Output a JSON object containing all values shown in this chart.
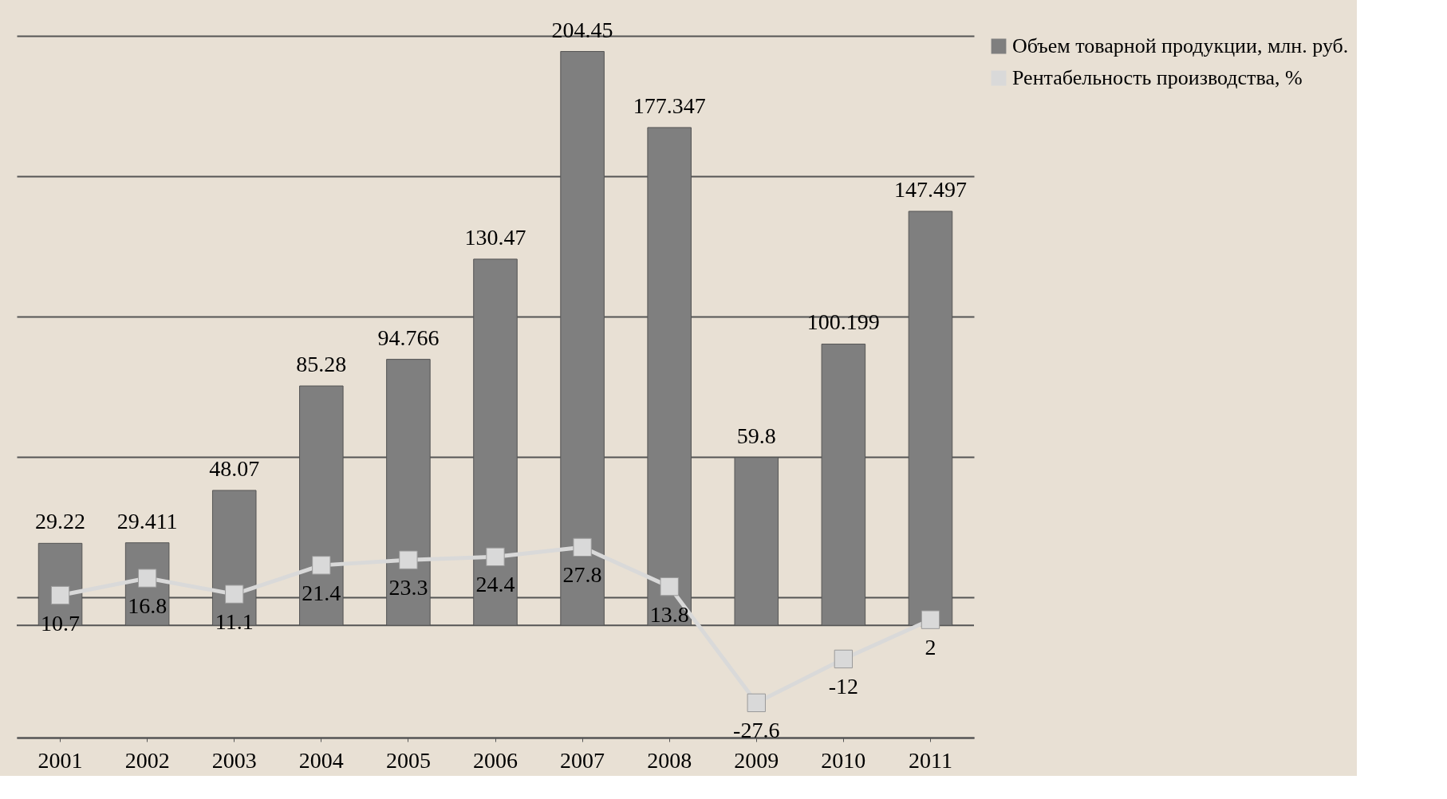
{
  "chart_data": {
    "type": "bar",
    "categories": [
      "2001",
      "2002",
      "2003",
      "2004",
      "2005",
      "2006",
      "2007",
      "2008",
      "2009",
      "2010",
      "2011"
    ],
    "series": [
      {
        "name": "Объем товарной продукции, млн. руб.",
        "color": "#7f7f7f",
        "values": [
          29.22,
          29.411,
          48.07,
          85.28,
          94.766,
          130.47,
          204.45,
          177.347,
          59.8,
          100.199,
          147.497
        ]
      },
      {
        "name": "Рентабельность производства, %",
        "type": "line",
        "color": "#d9d9d9",
        "marker": "square",
        "values": [
          10.7,
          16.8,
          11.1,
          21.4,
          23.3,
          24.4,
          27.8,
          13.8,
          -27.6,
          -12,
          2
        ]
      }
    ],
    "ylim": [
      -40,
      210
    ],
    "yticks": [
      {
        "value": -40,
        "label": null
      },
      {
        "value": 10,
        "label": null
      },
      {
        "value": 60,
        "label": null
      },
      {
        "value": 110,
        "label": null
      },
      {
        "value": 160,
        "label": null
      },
      {
        "value": 210,
        "label": null
      }
    ],
    "grid": "y",
    "legend": "right",
    "data_labels": true
  }
}
